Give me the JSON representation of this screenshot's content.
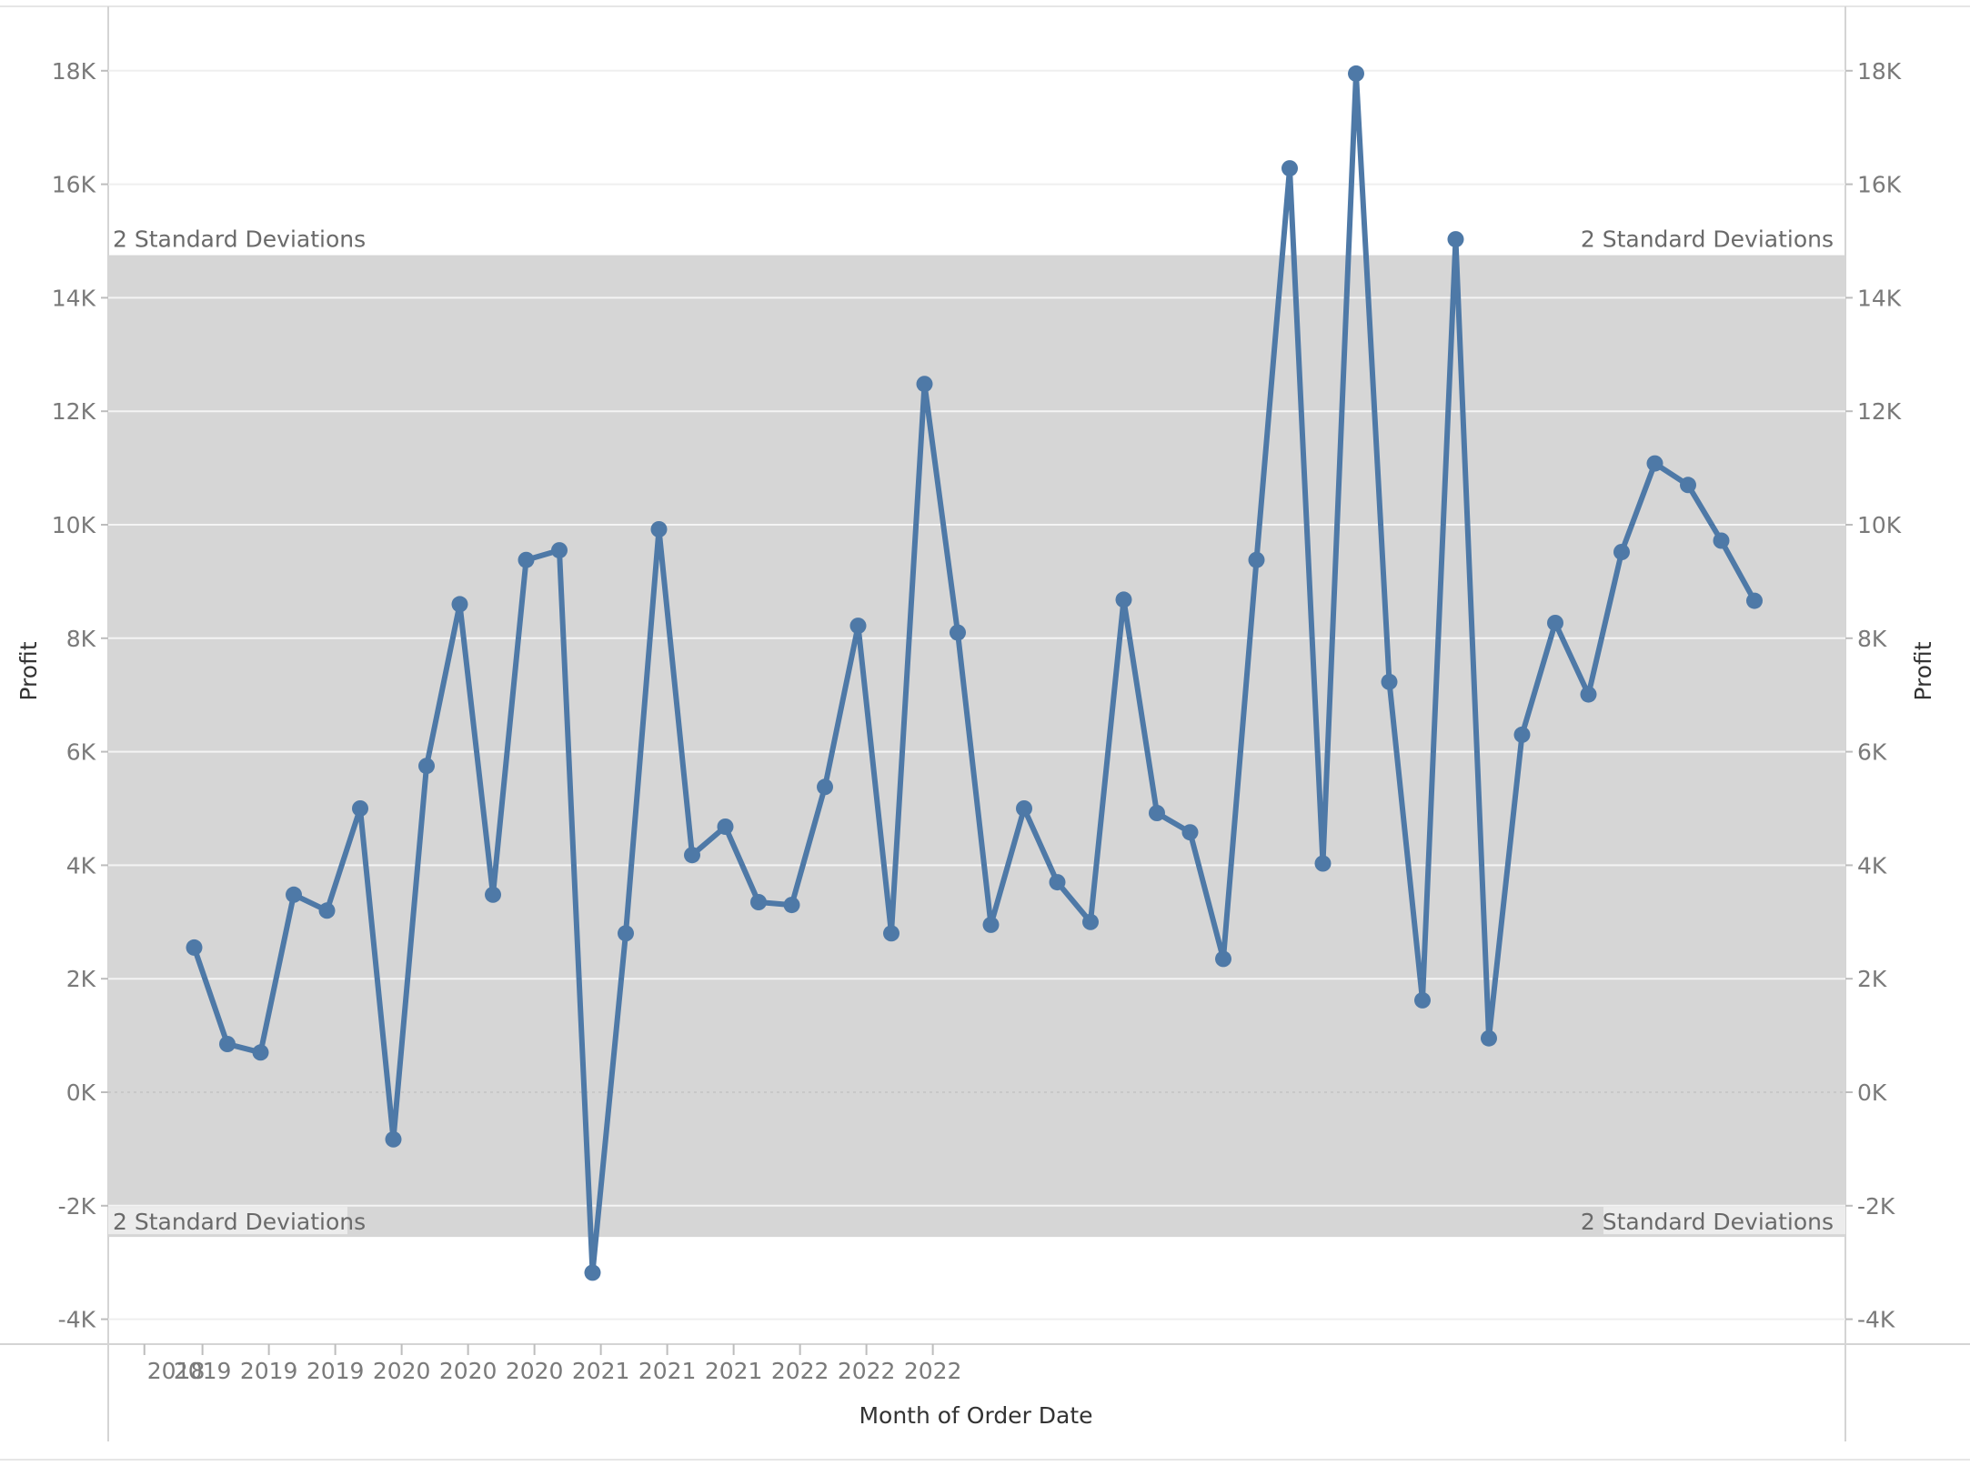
{
  "chart_data": {
    "type": "line",
    "xlabel": "Month of Order Date",
    "ylabel": "Profit",
    "ylabel_right": "Profit",
    "ylim": [
      -4500,
      19000
    ],
    "y_ticks": [
      -4000,
      -2000,
      0,
      2000,
      4000,
      6000,
      8000,
      10000,
      12000,
      14000,
      16000,
      18000
    ],
    "y_tick_labels": [
      "-4K",
      "-2K",
      "0K",
      "2K",
      "4K",
      "6K",
      "8K",
      "10K",
      "12K",
      "14K",
      "16K",
      "18K"
    ],
    "x_tick_labels": [
      "2018",
      "2019",
      "2019",
      "2019",
      "2020",
      "2020",
      "2020",
      "2021",
      "2021",
      "2021",
      "2022",
      "2022",
      "2022"
    ],
    "x_tick_quarter_index": [
      -1.5,
      0.25,
      2.25,
      4.25,
      6.25,
      8.25,
      10.25,
      12.25,
      14.25,
      16.25,
      18.25,
      20.25,
      22.25
    ],
    "reference_band": {
      "label_upper": "2 Standard Deviations",
      "label_lower": "2 Standard Deviations",
      "upper": 14750,
      "lower": -2550,
      "color": "#d6d6d6"
    },
    "line_color": "#4e79a7",
    "grid": true,
    "series": [
      {
        "values": [
          2550,
          850,
          700,
          3480,
          3200,
          5000,
          -830,
          5750,
          8600,
          3480,
          9380,
          9550,
          -3180,
          2800,
          9920,
          4180,
          4680,
          3350,
          3300,
          5380,
          8220,
          2800,
          12480,
          8100,
          2950,
          5000,
          3700,
          3000,
          8680,
          4920,
          4580,
          2350,
          9380,
          16280,
          4030,
          17950,
          7230,
          1620,
          15030,
          950,
          6300,
          8270,
          7010,
          9520,
          11080,
          10700,
          9720,
          8660
        ]
      }
    ]
  }
}
